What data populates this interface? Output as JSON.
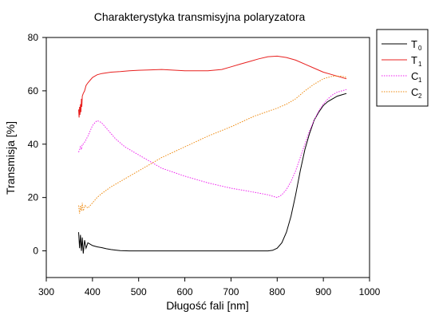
{
  "chart_data": {
    "type": "line",
    "title": "Charakterystyka transmisyjna polaryzatora",
    "xlabel": "Długość fali [nm]",
    "ylabel": "Transmisja [%]",
    "xlim": [
      300,
      1000
    ],
    "ylim": [
      -10,
      80
    ],
    "xticks": [
      300,
      400,
      500,
      600,
      700,
      800,
      900,
      1000
    ],
    "yticks": [
      0,
      20,
      40,
      60,
      80
    ],
    "grid": false,
    "legend_position": "right",
    "series": [
      {
        "name": "T",
        "subscript": "0",
        "color": "#000000",
        "style": "solid",
        "x": [
          370,
          372,
          374,
          376,
          378,
          380,
          383,
          386,
          390,
          395,
          400,
          410,
          420,
          430,
          440,
          450,
          460,
          480,
          500,
          550,
          600,
          650,
          700,
          750,
          780,
          790,
          800,
          810,
          820,
          830,
          840,
          850,
          860,
          870,
          880,
          890,
          900,
          910,
          920,
          930,
          940,
          950
        ],
        "y": [
          7,
          1,
          6,
          0,
          5,
          -1,
          4,
          1,
          3,
          2.5,
          2,
          1.5,
          1.2,
          0.8,
          0.5,
          0.3,
          0.1,
          0,
          0,
          0,
          0,
          0,
          0,
          0,
          0,
          0.2,
          1,
          3,
          7,
          13,
          21,
          30,
          38,
          44,
          49,
          52,
          54.5,
          56,
          57,
          58,
          58.5,
          59
        ]
      },
      {
        "name": "T",
        "subscript": "1",
        "color": "#e8201f",
        "style": "solid",
        "x": [
          370,
          371,
          372,
          373,
          374,
          375,
          376,
          377,
          378,
          380,
          383,
          386,
          390,
          395,
          400,
          410,
          420,
          440,
          460,
          480,
          500,
          520,
          550,
          600,
          650,
          680,
          700,
          720,
          740,
          760,
          780,
          800,
          820,
          840,
          860,
          880,
          900,
          920,
          940,
          950
        ],
        "y": [
          53,
          50,
          54,
          51,
          55,
          52,
          57,
          54,
          58,
          59,
          60,
          62,
          63,
          64,
          65,
          66,
          66.5,
          67,
          67.2,
          67.5,
          67.7,
          67.8,
          68,
          67.5,
          67.5,
          68,
          69,
          70,
          71,
          72,
          72.8,
          73,
          72.5,
          71.5,
          70,
          68.5,
          67,
          66,
          65,
          64.5
        ]
      },
      {
        "name": "C",
        "subscript": "1",
        "color": "#ee22ee",
        "style": "dotted",
        "x": [
          370,
          372,
          374,
          376,
          378,
          380,
          384,
          390,
          395,
          400,
          405,
          410,
          415,
          420,
          430,
          440,
          450,
          470,
          500,
          530,
          550,
          600,
          650,
          700,
          750,
          780,
          790,
          800,
          810,
          820,
          830,
          840,
          850,
          860,
          870,
          880,
          890,
          900,
          910,
          920,
          930,
          940,
          950
        ],
        "y": [
          37,
          38,
          39,
          38,
          40,
          40,
          41,
          43,
          45,
          47,
          48,
          48.8,
          48.5,
          48,
          46,
          44,
          42,
          39,
          36,
          33,
          31,
          28,
          25.5,
          23.5,
          22,
          21,
          20.5,
          20,
          21,
          23,
          26,
          30,
          35,
          40,
          45,
          49,
          52.5,
          55,
          57,
          58.5,
          59.5,
          60,
          60.5
        ]
      },
      {
        "name": "C",
        "subscript": "2",
        "color": "#ee8a10",
        "style": "dotted",
        "x": [
          370,
          372,
          374,
          376,
          378,
          380,
          384,
          390,
          400,
          410,
          420,
          440,
          460,
          480,
          500,
          550,
          600,
          650,
          700,
          750,
          800,
          820,
          840,
          860,
          880,
          900,
          920,
          940,
          950
        ],
        "y": [
          17,
          14,
          17,
          15,
          18,
          15,
          17,
          16,
          18,
          20,
          21.5,
          24,
          26,
          28,
          30,
          35,
          39,
          43,
          46.5,
          50.5,
          53.5,
          55,
          57,
          60,
          62.5,
          64.5,
          65.5,
          65.5,
          65
        ]
      }
    ]
  }
}
